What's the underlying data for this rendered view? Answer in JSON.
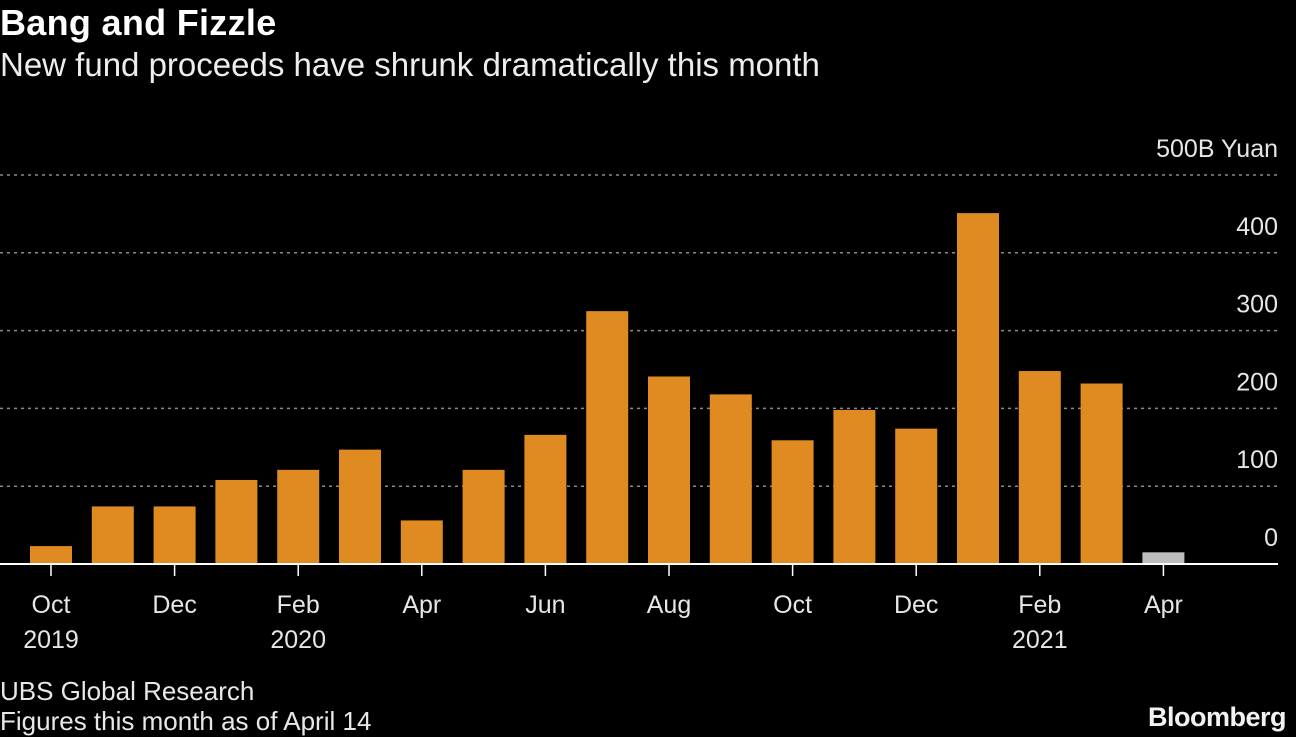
{
  "header": {
    "title": "Bang and Fizzle",
    "subtitle": "New fund proceeds have shrunk dramatically this month"
  },
  "footer": {
    "source": "UBS Global Research",
    "note": "Figures this month as of April 14",
    "logo": "Bloomberg"
  },
  "colors": {
    "background": "#000000",
    "bar": "#E08A22",
    "bar_partial": "#BDBDBD",
    "grid": "#8a8a8a",
    "axis": "#ffffff"
  },
  "chart_data": {
    "type": "bar",
    "title": "Bang and Fizzle",
    "subtitle": "New fund proceeds have shrunk dramatically this month",
    "unit_label": "500B Yuan",
    "ylim": [
      0,
      500
    ],
    "yticks": [
      0,
      100,
      200,
      300,
      400,
      500
    ],
    "ytick_labels": [
      "0",
      "100",
      "200",
      "300",
      "400",
      "500B Yuan"
    ],
    "grid": true,
    "categories": [
      "Oct 2019",
      "Nov 2019",
      "Dec 2019",
      "Jan 2020",
      "Feb 2020",
      "Mar 2020",
      "Apr 2020",
      "May 2020",
      "Jun 2020",
      "Jul 2020",
      "Aug 2020",
      "Sep 2020",
      "Oct 2020",
      "Nov 2020",
      "Dec 2020",
      "Jan 2021",
      "Feb 2021",
      "Mar 2021",
      "Apr 2021"
    ],
    "values": [
      23,
      74,
      74,
      108,
      121,
      147,
      56,
      121,
      166,
      325,
      241,
      218,
      159,
      198,
      174,
      451,
      248,
      232,
      15
    ],
    "partial_index": 18,
    "xtick_labels": [
      {
        "index": 0,
        "month": "Oct",
        "year": "2019"
      },
      {
        "index": 2,
        "month": "Dec",
        "year": ""
      },
      {
        "index": 4,
        "month": "Feb",
        "year": "2020"
      },
      {
        "index": 6,
        "month": "Apr",
        "year": ""
      },
      {
        "index": 8,
        "month": "Jun",
        "year": ""
      },
      {
        "index": 10,
        "month": "Aug",
        "year": ""
      },
      {
        "index": 12,
        "month": "Oct",
        "year": ""
      },
      {
        "index": 14,
        "month": "Dec",
        "year": ""
      },
      {
        "index": 16,
        "month": "Feb",
        "year": "2021"
      },
      {
        "index": 18,
        "month": "Apr",
        "year": ""
      }
    ]
  }
}
